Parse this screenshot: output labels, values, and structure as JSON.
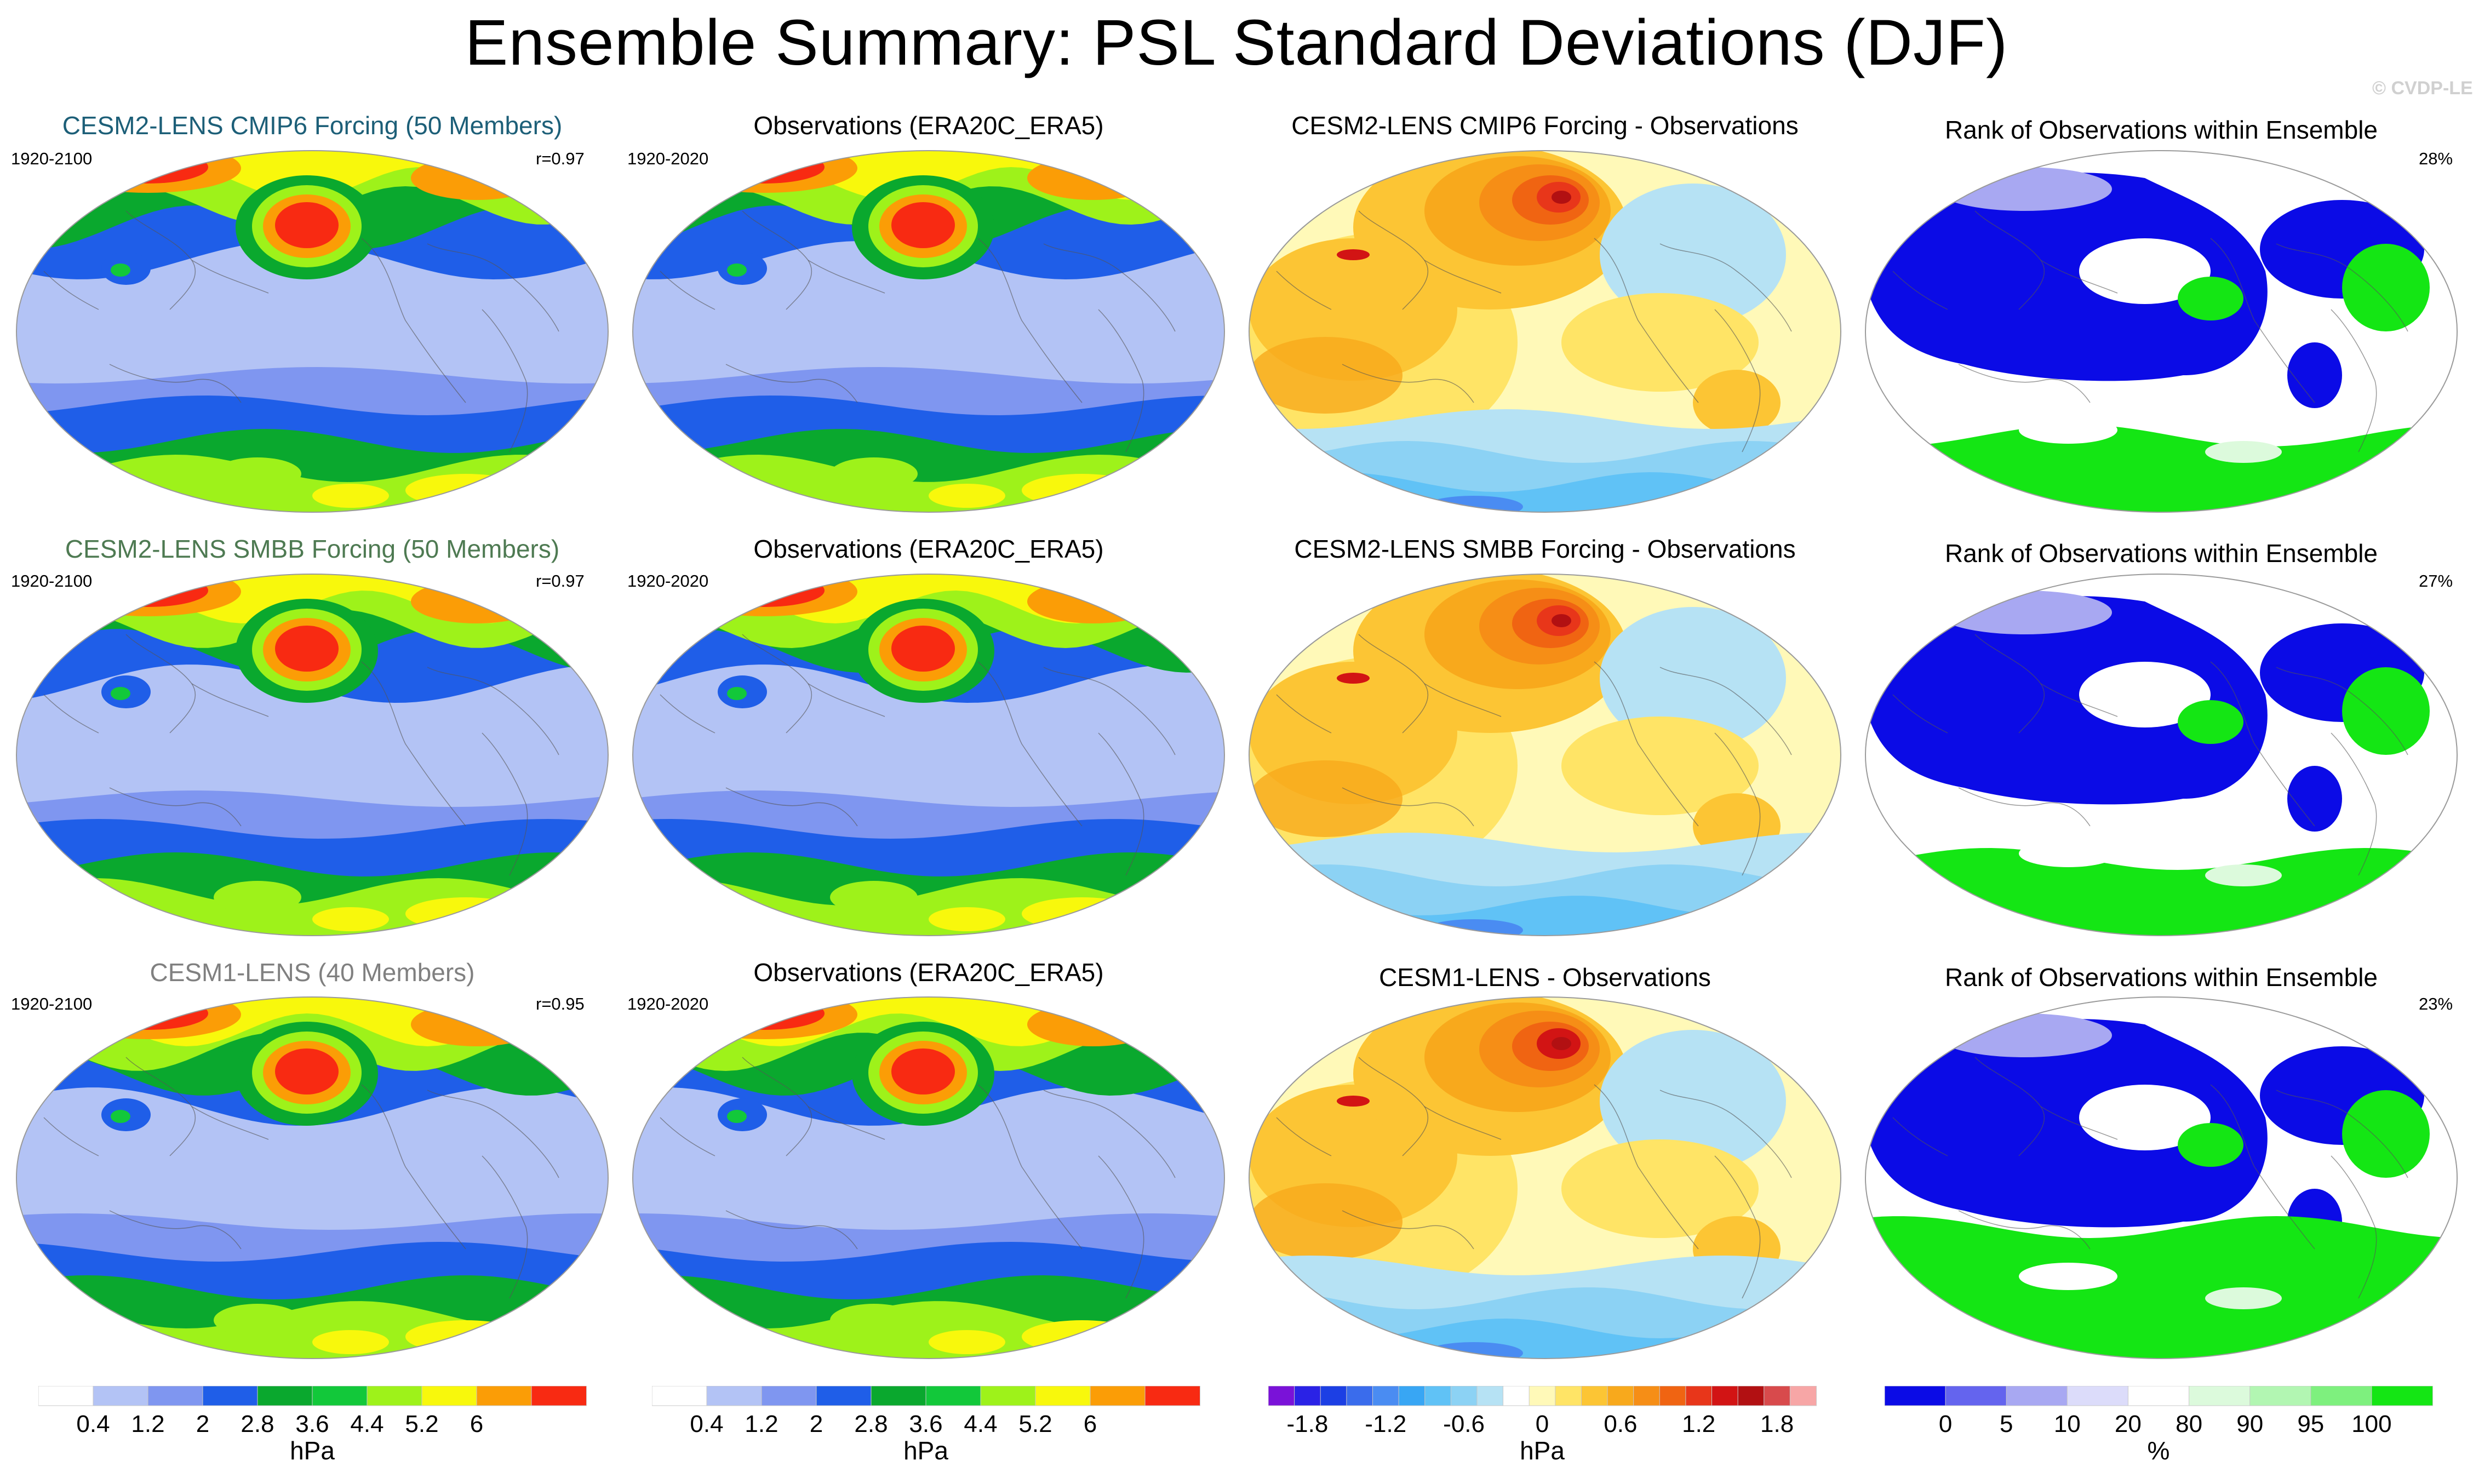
{
  "title": "Ensemble Summary: PSL Standard Deviations (DJF)",
  "copyright": "© CVDP-LE",
  "rows": [
    {
      "model_title": "CESM2-LENS CMIP6 Forcing (50 Members)",
      "model_title_color": "#1d5f78",
      "model_years": "1920-2100",
      "pattern_corr": "r=0.97",
      "obs_title": "Observations (ERA20C_ERA5)",
      "obs_years": "1920-2020",
      "diff_title": "CESM2-LENS CMIP6 Forcing - Observations",
      "rank_title": "Rank of Observations within Ensemble",
      "rank_pct": "28%"
    },
    {
      "model_title": "CESM2-LENS SMBB Forcing (50 Members)",
      "model_title_color": "#4e7a52",
      "model_years": "1920-2100",
      "pattern_corr": "r=0.97",
      "obs_title": "Observations (ERA20C_ERA5)",
      "obs_years": "1920-2020",
      "diff_title": "CESM2-LENS SMBB Forcing - Observations",
      "rank_title": "Rank of Observations within Ensemble",
      "rank_pct": "27%"
    },
    {
      "model_title": "CESM1-LENS (40 Members)",
      "model_title_color": "#808080",
      "model_years": "1920-2100",
      "pattern_corr": "r=0.95",
      "obs_title": "Observations (ERA20C_ERA5)",
      "obs_years": "1920-2020",
      "diff_title": "CESM1-LENS - Observations",
      "rank_title": "Rank of Observations within Ensemble",
      "rank_pct": "23%"
    }
  ],
  "colorbars": {
    "std": {
      "unit": "hPa",
      "colors": [
        "#ffffff",
        "#b3c3f5",
        "#7f96f0",
        "#1f5ee8",
        "#0aa82e",
        "#12c83a",
        "#9ef21a",
        "#f8f80c",
        "#fb9d06",
        "#f82a12"
      ],
      "tick_labels": [
        "0.4",
        "1.2",
        "2",
        "2.8",
        "3.6",
        "4.4",
        "5.2",
        "6"
      ]
    },
    "diff": {
      "unit": "hPa",
      "colors": [
        "#7a12d8",
        "#2a22e6",
        "#1c3fe4",
        "#3a6cec",
        "#4a8cf2",
        "#38a6f4",
        "#60c2f6",
        "#8cd2f4",
        "#b6e2f4",
        "#ffffff",
        "#fff9b8",
        "#ffe466",
        "#fcc534",
        "#f8a91c",
        "#f68e16",
        "#f06412",
        "#e8361a",
        "#d21414",
        "#b21012",
        "#d84a4c",
        "#f7a6a6"
      ],
      "tick_labels": [
        "-1.8",
        "-1.2",
        "-0.6",
        "0",
        "0.6",
        "1.2",
        "1.8"
      ]
    },
    "rank": {
      "unit": "%",
      "colors": [
        "#0b0be6",
        "#6464ee",
        "#a8a8f2",
        "#dcdcfa",
        "#ffffff",
        "#dcfadc",
        "#b2f6b2",
        "#7ef07e",
        "#14e614"
      ],
      "tick_labels": [
        "0",
        "5",
        "10",
        "20",
        "80",
        "90",
        "95",
        "100"
      ]
    }
  },
  "chart_data": [
    {
      "type": "heatmap",
      "panel": "row1-col1",
      "title": "CESM2-LENS CMIP6 Forcing (50 Members)",
      "field": "PSL standard deviation (DJF)",
      "units": "hPa",
      "levels": [
        0.4,
        1.2,
        2,
        2.8,
        3.6,
        4.4,
        5.2,
        6
      ],
      "period": "1920-2100",
      "pattern_correlation": 0.97
    },
    {
      "type": "heatmap",
      "panel": "row1-col2",
      "title": "Observations (ERA20C_ERA5)",
      "field": "PSL standard deviation (DJF)",
      "units": "hPa",
      "levels": [
        0.4,
        1.2,
        2,
        2.8,
        3.6,
        4.4,
        5.2,
        6
      ],
      "period": "1920-2020"
    },
    {
      "type": "heatmap",
      "panel": "row1-col3",
      "title": "CESM2-LENS CMIP6 Forcing - Observations",
      "field": "PSL std difference",
      "units": "hPa",
      "levels": [
        -1.8,
        -1.2,
        -0.6,
        0,
        0.6,
        1.2,
        1.8
      ]
    },
    {
      "type": "heatmap",
      "panel": "row1-col4",
      "title": "Rank of Observations within Ensemble",
      "units": "%",
      "levels": [
        0,
        5,
        10,
        20,
        80,
        90,
        95,
        100
      ],
      "percent_outside": 28
    },
    {
      "type": "heatmap",
      "panel": "row2-col1",
      "title": "CESM2-LENS SMBB Forcing (50 Members)",
      "units": "hPa",
      "period": "1920-2100",
      "pattern_correlation": 0.97
    },
    {
      "type": "heatmap",
      "panel": "row2-col2",
      "title": "Observations (ERA20C_ERA5)",
      "units": "hPa",
      "period": "1920-2020"
    },
    {
      "type": "heatmap",
      "panel": "row2-col3",
      "title": "CESM2-LENS SMBB Forcing - Observations",
      "units": "hPa"
    },
    {
      "type": "heatmap",
      "panel": "row2-col4",
      "title": "Rank of Observations within Ensemble",
      "units": "%",
      "percent_outside": 27
    },
    {
      "type": "heatmap",
      "panel": "row3-col1",
      "title": "CESM1-LENS (40 Members)",
      "units": "hPa",
      "period": "1920-2100",
      "pattern_correlation": 0.95
    },
    {
      "type": "heatmap",
      "panel": "row3-col2",
      "title": "Observations (ERA20C_ERA5)",
      "units": "hPa",
      "period": "1920-2020"
    },
    {
      "type": "heatmap",
      "panel": "row3-col3",
      "title": "CESM1-LENS - Observations",
      "units": "hPa"
    },
    {
      "type": "heatmap",
      "panel": "row3-col4",
      "title": "Rank of Observations within Ensemble",
      "units": "%",
      "percent_outside": 23
    }
  ]
}
